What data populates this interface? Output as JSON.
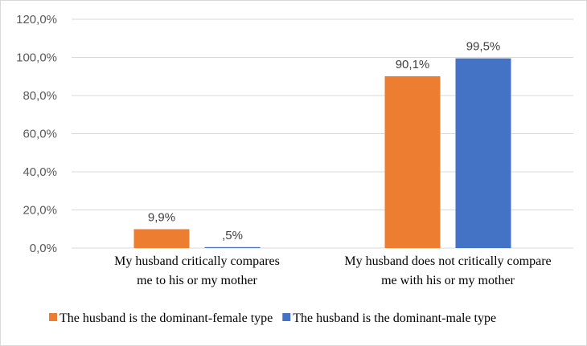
{
  "chart_data": {
    "type": "bar",
    "categories": [
      [
        "My husband critically compares",
        "me to his or my mother"
      ],
      [
        "My husband does not critically compare",
        "me with his or my mother"
      ]
    ],
    "series": [
      {
        "name": "The husband is the dominant-female type",
        "values": [
          9.9,
          90.1
        ],
        "labels": [
          "9,9%",
          "90,1%"
        ],
        "color": "#ED7D31"
      },
      {
        "name": "The husband is the dominant-male type",
        "values": [
          0.5,
          99.5
        ],
        "labels": [
          ",5%",
          "99,5%"
        ],
        "color": "#4472C4"
      }
    ],
    "ylim": [
      0,
      120
    ],
    "yticks": [
      {
        "value": 0,
        "label": "0,0%"
      },
      {
        "value": 20,
        "label": "20,0%"
      },
      {
        "value": 40,
        "label": "40,0%"
      },
      {
        "value": 60,
        "label": "60,0%"
      },
      {
        "value": 80,
        "label": "80,0%"
      },
      {
        "value": 100,
        "label": "100,0%"
      },
      {
        "value": 120,
        "label": "120,0%"
      }
    ],
    "grid": true,
    "legend_position": "bottom",
    "title": "",
    "xlabel": "",
    "ylabel": ""
  }
}
